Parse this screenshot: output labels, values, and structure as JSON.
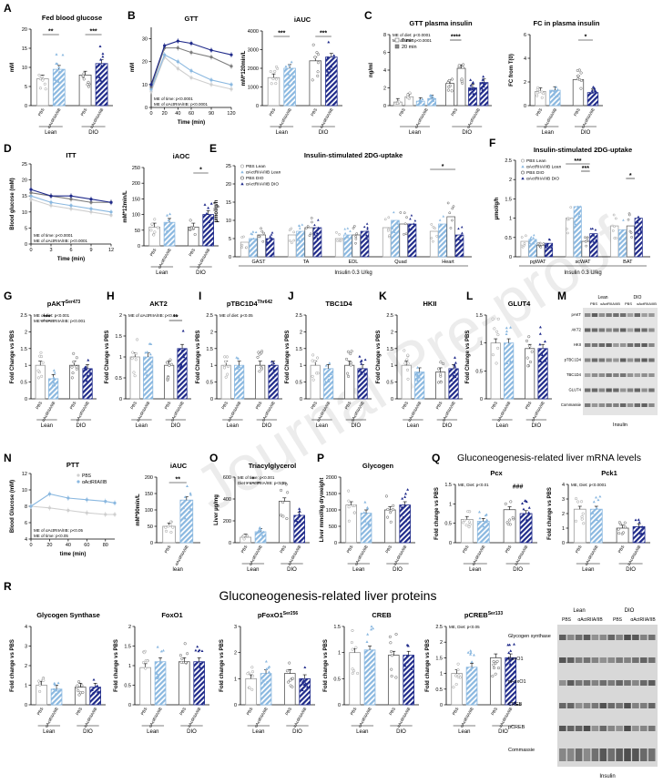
{
  "colors": {
    "pbs_lean": "#cfcfcf",
    "acv_lean": "#8ab8e0",
    "pbs_dio": "#7d7d7d",
    "acv_dio": "#1f2a8a"
  },
  "legend_pbs": "PBS",
  "legend_acv": "αActRIIA/IIB",
  "lean": "Lean",
  "dio": "DIO",
  "lean_lc": "lean",
  "insulin": "Insulin",
  "watermark": "Journal Pre-proof",
  "panels": {
    "A": "A",
    "B": "B",
    "C": "C",
    "D": "D",
    "E": "E",
    "F": "F",
    "G": "G",
    "H": "H",
    "I": "I",
    "J": "J",
    "K": "K",
    "L": "L",
    "M": "M",
    "N": "N",
    "O": "O",
    "P": "P",
    "Q": "Q",
    "R": "R"
  },
  "q_title": "Gluconeogenesis-related liver mRNA levels",
  "r_title": "Gluconeogenesis-related liver proteins",
  "e_title": "Insulin-stimulated 2DG-uptake",
  "f_title": "Insulin-stimulated 2DG-uptake",
  "e_sub": "Insulin 0.3 U/kg",
  "f_sub": "Insulin 0.3 U/kg",
  "e_legend": [
    "PBS Lean",
    "αActRIIA/IIB Lean",
    "PBS DIO",
    "αActRIIA/IIB DIO"
  ],
  "f_legend": [
    "PBS Lean",
    "αActRIIA/IIB Lean",
    "PBS DIO",
    "αActRIIA/IIB DIO"
  ],
  "c_legend": [
    "0 min",
    "20 min"
  ],
  "n_legend": [
    "PBS",
    "αActRIIA/IIB"
  ],
  "m_header": {
    "lean": "Lean",
    "dio": "DIO",
    "pbs": "PBS",
    "acv": "αActRIIA/IIB"
  },
  "m_rows": [
    "pAKT",
    "AKT2",
    "HKII",
    "pTBC1D4",
    "TBC1D4",
    "GLUT4",
    "Commassie"
  ],
  "r_blot_rows": [
    "Glycogen synthase",
    "FoxO1",
    "pFoxO1",
    "CREB",
    "pCREB",
    "Commassie"
  ],
  "chart_data": [
    {
      "id": "A",
      "type": "bar",
      "title": "Fed blood glucose",
      "ylabel": "mM",
      "ylim": [
        0,
        20
      ],
      "yticks": [
        0,
        5,
        10,
        15,
        20
      ],
      "values": [
        7,
        9.5,
        8,
        11
      ],
      "sig": [
        "**",
        "***"
      ],
      "xt": [
        "PBS",
        "αActRIIA/IIB",
        "PBS",
        "αActRIIA/IIB"
      ]
    },
    {
      "id": "B1",
      "type": "line",
      "title": "GTT",
      "ylabel": "mM",
      "xlabel": "Time (min)",
      "ylim": [
        0,
        35
      ],
      "yticks": [
        0,
        10,
        20,
        30
      ],
      "x": [
        0,
        20,
        40,
        60,
        90,
        120
      ],
      "xticks": [
        0,
        20,
        40,
        60,
        90,
        120
      ],
      "series": [
        {
          "name": "PBS Lean",
          "values": [
            7,
            22,
            17,
            13,
            10,
            8
          ]
        },
        {
          "name": "αActRIIA/IIB Lean",
          "values": [
            8,
            23,
            20,
            16,
            12,
            10
          ]
        },
        {
          "name": "PBS DIO",
          "values": [
            9,
            26,
            26,
            24,
            22,
            18
          ]
        },
        {
          "name": "αActRIIA/IIB DIO",
          "values": [
            10,
            27,
            29,
            28,
            25,
            23
          ]
        }
      ],
      "notes": [
        "ME of time: p<0.0001",
        "ME of αActRIIA/IIB: p<0.0001"
      ]
    },
    {
      "id": "B2",
      "type": "bar",
      "title": "iAUC",
      "ylabel": "mM*120min/L",
      "ylim": [
        0,
        4000
      ],
      "yticks": [
        0,
        1000,
        2000,
        3000,
        4000
      ],
      "values": [
        1500,
        2000,
        2400,
        2600
      ],
      "sig": [
        "***",
        "***"
      ],
      "xt": [
        "PBS",
        "αActRIIA/IIB",
        "PBS",
        "αActRIIA/IIB"
      ]
    },
    {
      "id": "C1",
      "type": "bar",
      "title": "GTT plasma insulin",
      "ylabel": "ng/ml",
      "ylim": [
        0,
        8
      ],
      "yticks": [
        0,
        2,
        4,
        6,
        8
      ],
      "values": [
        0.4,
        1.0,
        0.5,
        0.8,
        2.5,
        4.2,
        2.0,
        2.6
      ],
      "sig": [
        "****"
      ],
      "xt": [
        "PBS",
        "αActRIIA/IIB",
        "PBS",
        "αActRIIA/IIB"
      ],
      "notes": [
        "ME of diet: p<0.0001",
        "ME of time: p<0.0001"
      ]
    },
    {
      "id": "C2",
      "type": "bar",
      "title": "FC in plasma insulin",
      "ylabel": "FC from T(0)",
      "ylim": [
        0,
        6
      ],
      "yticks": [
        0,
        2,
        4,
        6
      ],
      "values": [
        1.2,
        1.3,
        2.2,
        1.1
      ],
      "sig": [
        "*"
      ],
      "xt": [
        "PBS",
        "αActRIIA/IIB",
        "PBS",
        "αActRIIA/IIB"
      ]
    },
    {
      "id": "D1",
      "type": "line",
      "title": "ITT",
      "ylabel": "Blood glucose (mM)",
      "xlabel": "Time (min)",
      "ylim": [
        0,
        25
      ],
      "yticks": [
        0,
        5,
        10,
        15,
        20,
        25
      ],
      "x": [
        0,
        3,
        6,
        9,
        12
      ],
      "xticks": [
        0,
        3,
        6,
        9,
        12
      ],
      "series": [
        {
          "name": "PBS Lean",
          "values": [
            14,
            12,
            11,
            10,
            9
          ]
        },
        {
          "name": "αActRIIA/IIB Lean",
          "values": [
            15,
            13,
            12,
            11,
            10
          ]
        },
        {
          "name": "PBS DIO",
          "values": [
            16,
            15,
            14,
            13,
            13
          ]
        },
        {
          "name": "αActRIIA/IIB DIO",
          "values": [
            17,
            15,
            15,
            14,
            13
          ]
        }
      ],
      "notes": [
        "ME of time: p<0.0001",
        "ME of αActRIIA/IIB: p<0.0001"
      ]
    },
    {
      "id": "D2",
      "type": "bar",
      "title": "iAOC",
      "ylabel": "mM*12min/L",
      "ylim": [
        0,
        250
      ],
      "yticks": [
        0,
        50,
        100,
        150,
        200,
        250
      ],
      "values": [
        60,
        75,
        60,
        100
      ],
      "sig": [
        "*"
      ],
      "xt": [
        "PBS",
        "αActRIIA/IIB",
        "PBS",
        "αActRIIA/IIB"
      ]
    },
    {
      "id": "E",
      "type": "bar",
      "ylabel": "µmol/g/h",
      "ylim": [
        0,
        25
      ],
      "yticks": [
        0,
        5,
        10,
        15,
        20,
        25
      ],
      "categories": [
        "GAST",
        "TA",
        "EDL",
        "Quad",
        "Heart"
      ],
      "series": [
        {
          "name": "PBS Lean",
          "values": [
            4,
            6,
            5,
            8,
            7
          ]
        },
        {
          "name": "αActRIIA/IIB Lean",
          "values": [
            5,
            7,
            6,
            10,
            9
          ]
        },
        {
          "name": "PBS DIO",
          "values": [
            6,
            8,
            6,
            9,
            11
          ]
        },
        {
          "name": "αActRIIA/IIB DIO",
          "values": [
            5,
            8,
            7,
            9,
            6
          ]
        }
      ],
      "sig": [
        "*"
      ]
    },
    {
      "id": "F",
      "type": "bar",
      "ylabel": "µmol/g/h",
      "ylim": [
        0,
        2.5
      ],
      "yticks": [
        0,
        0.5,
        1.0,
        1.5,
        2.0,
        2.5
      ],
      "categories": [
        "pgWAT",
        "scWAT",
        "BAT"
      ],
      "series": [
        {
          "name": "PBS Lean",
          "values": [
            0.4,
            1.0,
            0.8
          ]
        },
        {
          "name": "αActRIIA/IIB Lean",
          "values": [
            0.45,
            1.3,
            0.7
          ]
        },
        {
          "name": "PBS DIO",
          "values": [
            0.3,
            0.4,
            0.8
          ]
        },
        {
          "name": "αActRIIA/IIB DIO",
          "values": [
            0.35,
            0.6,
            1.0
          ]
        }
      ],
      "sig": [
        "***",
        "***",
        "*"
      ]
    },
    {
      "id": "G",
      "type": "bar",
      "title": "pAKT",
      "title_sup": "Ser473",
      "ylabel": "Fold Change vs PBS",
      "ylim": [
        0,
        2.5
      ],
      "yticks": [
        0,
        0.5,
        1.0,
        1.5,
        2.0,
        2.5
      ],
      "values": [
        1.0,
        0.6,
        1.0,
        0.9
      ],
      "sig": [
        "***"
      ],
      "xt": [
        "PBS",
        "αActRIIA/IIB",
        "PBS",
        "αActRIIA/IIB"
      ],
      "notes": [
        "ME of diet: p<0.001",
        "ME of αActRIIA/IIB: p<0.001"
      ]
    },
    {
      "id": "H",
      "type": "bar",
      "title": "AKT2",
      "ylabel": "Fold Change vs PBS",
      "ylim": [
        0,
        2.0
      ],
      "yticks": [
        0,
        0.5,
        1.0,
        1.5,
        2.0
      ],
      "values": [
        1.0,
        1.0,
        0.8,
        1.2
      ],
      "sig": [
        "**"
      ],
      "xt": [
        "PBS",
        "αActRIIA/IIB",
        "PBS",
        "αActRIIA/IIB"
      ],
      "notes": [
        "ME of αActRIIA/IIB: p<0.01"
      ]
    },
    {
      "id": "I",
      "type": "bar",
      "title": "pTBC1D4",
      "title_sup": "Thr642",
      "ylabel": "Fold Change vs PBS",
      "ylim": [
        0,
        2.5
      ],
      "yticks": [
        0,
        0.5,
        1.0,
        1.5,
        2.0,
        2.5
      ],
      "values": [
        1.0,
        1.0,
        1.0,
        1.0
      ],
      "xt": [
        "PBS",
        "αActRIIA/IIB",
        "PBS",
        "αActRIIA/IIB"
      ],
      "notes": [
        "ME of diet: p<0.05"
      ]
    },
    {
      "id": "J",
      "type": "bar",
      "title": "TBC1D4",
      "ylabel": "Fold Change vs PBS",
      "ylim": [
        0,
        2.5
      ],
      "yticks": [
        0,
        0.5,
        1.0,
        1.5,
        2.0,
        2.5
      ],
      "values": [
        1.0,
        0.9,
        1.0,
        0.9
      ],
      "xt": [
        "PBS",
        "αActRIIA/IIB",
        "PBS",
        "αActRIIA/IIB"
      ]
    },
    {
      "id": "K",
      "type": "bar",
      "title": "HKII",
      "ylabel": "Fold Change vs PBS",
      "ylim": [
        0,
        2.5
      ],
      "yticks": [
        0,
        0.5,
        1.0,
        1.5,
        2.0,
        2.5
      ],
      "values": [
        1.0,
        0.8,
        0.8,
        0.9
      ],
      "xt": [
        "PBS",
        "αActRIIA/IIB",
        "PBS",
        "αActRIIA/IIB"
      ]
    },
    {
      "id": "L",
      "type": "bar",
      "title": "GLUT4",
      "ylabel": "Fold Change vs PBS",
      "ylim": [
        0,
        1.5
      ],
      "yticks": [
        0,
        0.5,
        1.0,
        1.5
      ],
      "values": [
        1.0,
        1.0,
        0.9,
        0.9
      ],
      "xt": [
        "PBS",
        "αActRIIA/IIB",
        "PBS",
        "αActRIIA/IIB"
      ]
    },
    {
      "id": "N1",
      "type": "line",
      "title": "PTT",
      "ylabel": "Blood Glucose (mM)",
      "xlabel": "time (min)",
      "ylim": [
        4,
        12
      ],
      "yticks": [
        4,
        6,
        8,
        10,
        12
      ],
      "x": [
        0,
        20,
        40,
        60,
        80,
        90
      ],
      "xticks": [
        0,
        20,
        40,
        60,
        80
      ],
      "series": [
        {
          "name": "PBS",
          "values": [
            8,
            7.8,
            7.5,
            7.2,
            7,
            7
          ]
        },
        {
          "name": "αActRIIA/IIB",
          "values": [
            8,
            9.5,
            9,
            8.8,
            8.6,
            8.4
          ]
        }
      ],
      "notes": [
        "ME of αActRIIA/IIB: p<0.05",
        "ME of time: p<0.05"
      ]
    },
    {
      "id": "N2",
      "type": "bar",
      "title": "iAUC",
      "ylabel": "mM*90min/L",
      "ylim": [
        0,
        200
      ],
      "yticks": [
        0,
        50,
        100,
        150,
        200
      ],
      "values": [
        50,
        130
      ],
      "sig": [
        "**"
      ],
      "xt": [
        "PBS",
        "αActRIIA/IIB"
      ]
    },
    {
      "id": "O",
      "type": "bar",
      "title": "Triacylglycerol",
      "ylabel": "Liver µg/mg",
      "ylim": [
        0,
        600
      ],
      "yticks": [
        0,
        200,
        400,
        600
      ],
      "values": [
        50,
        100,
        380,
        250
      ],
      "sig": [
        "*"
      ],
      "xt": [
        "PBS",
        "αActRIIA/IIB",
        "PBS",
        "αActRIIA/IIB"
      ],
      "notes": [
        "ME of time: p<0.001",
        "Diet x αActRIIA/IIB: p<0.05"
      ]
    },
    {
      "id": "P",
      "type": "bar",
      "title": "Glycogen",
      "ylabel": "Liver mmol/kg dryweight",
      "ylim": [
        0,
        2000
      ],
      "yticks": [
        0,
        500,
        1000,
        1500,
        2000
      ],
      "values": [
        1150,
        900,
        1000,
        1150
      ],
      "xt": [
        "PBS",
        "αActRIIA/IIB",
        "PBS",
        "αActRIIA/IIB"
      ]
    },
    {
      "id": "Q1",
      "type": "bar",
      "title": "Pcx",
      "ylabel": "Fold change vs PBS",
      "ylim": [
        0,
        1.5
      ],
      "yticks": [
        0,
        0.5,
        1.0,
        1.5
      ],
      "values": [
        0.6,
        0.55,
        0.85,
        0.75
      ],
      "sig": [
        "###"
      ],
      "xt": [
        "PBS",
        "αActRIIA/IIB",
        "PBS",
        "αActRIIA/IIB"
      ],
      "notes": [
        "ME, Diet: p<0.01"
      ]
    },
    {
      "id": "Q2",
      "type": "bar",
      "title": "Pck1",
      "ylabel": "Fold change vs PBS",
      "ylim": [
        0,
        4
      ],
      "yticks": [
        0,
        1,
        2,
        3,
        4
      ],
      "values": [
        2.3,
        2.3,
        1.0,
        1.1
      ],
      "xt": [
        "PBS",
        "αActRIIA/IIB",
        "PBS",
        "αActRIIA/IIB"
      ],
      "notes": [
        "ME, Diet: p<0.0001"
      ]
    },
    {
      "id": "R1",
      "type": "bar",
      "title": "Glycogen Synthase",
      "ylabel": "Fold change vs PBS",
      "ylim": [
        0,
        4
      ],
      "yticks": [
        0,
        1,
        2,
        3,
        4
      ],
      "values": [
        1.0,
        0.8,
        0.9,
        0.9
      ],
      "xt": [
        "PBS",
        "αActRIIA/IIB",
        "PBS",
        "αActRIIA/IIB"
      ]
    },
    {
      "id": "R2",
      "type": "bar",
      "title": "FoxO1",
      "ylabel": "Fold change vs PBS",
      "ylim": [
        0,
        2.0
      ],
      "yticks": [
        0,
        0.5,
        1.0,
        1.5,
        2.0
      ],
      "values": [
        0.95,
        1.1,
        1.1,
        1.1
      ],
      "xt": [
        "PBS",
        "αActRIIA/IIB",
        "PBS",
        "αActRIIA/IIB"
      ]
    },
    {
      "id": "R3",
      "type": "bar",
      "title": "pFoxO1",
      "title_sup": "Ser256",
      "ylabel": "Fold change vs PBS",
      "ylim": [
        0,
        3
      ],
      "yticks": [
        0,
        1,
        2,
        3
      ],
      "values": [
        1.0,
        1.2,
        1.2,
        1.0
      ],
      "xt": [
        "PBS",
        "αActRIIA/IIB",
        "PBS",
        "αActRIIA/IIB"
      ]
    },
    {
      "id": "R4",
      "type": "bar",
      "title": "CREB",
      "ylabel": "Fold change vs PBS",
      "ylim": [
        0,
        1.5
      ],
      "yticks": [
        0,
        0.5,
        1.0,
        1.5
      ],
      "values": [
        1.0,
        1.05,
        0.95,
        0.95
      ],
      "xt": [
        "PBS",
        "αActRIIA/IIB",
        "PBS",
        "αActRIIA/IIB"
      ]
    },
    {
      "id": "R5",
      "type": "bar",
      "title": "pCREB",
      "title_sup": "Ser133",
      "ylabel": "Fold change vs PBS",
      "ylim": [
        0,
        2.5
      ],
      "yticks": [
        0,
        0.5,
        1.0,
        1.5,
        2.0,
        2.5
      ],
      "values": [
        1.0,
        1.2,
        1.5,
        1.5
      ],
      "xt": [
        "PBS",
        "αActRIIA/IIB",
        "PBS",
        "αActRIIA/IIB"
      ],
      "notes": [
        "ME, Diet: p<0.05"
      ]
    }
  ]
}
